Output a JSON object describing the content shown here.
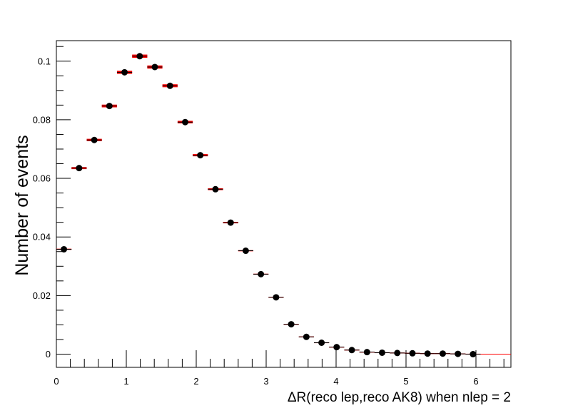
{
  "chart_data": {
    "type": "scatter",
    "title": "",
    "xlabel": "ΔR(reco lep,reco AK8) when nlep = 2",
    "ylabel": "Number of events",
    "xlim": [
      0,
      6.5
    ],
    "ylim": [
      -0.0045,
      0.107
    ],
    "x_ticks": [
      "0",
      "1",
      "2",
      "3",
      "4",
      "5",
      "6"
    ],
    "y_ticks": [
      "0",
      "0.02",
      "0.04",
      "0.06",
      "0.08",
      "0.1"
    ],
    "bin_width": 0.2167,
    "grid": false,
    "legend": "none",
    "colors": {
      "band": "#ff0000",
      "marker": "#000000"
    },
    "series": [
      {
        "x": [
          0.108,
          0.325,
          0.542,
          0.758,
          0.975,
          1.192,
          1.408,
          1.625,
          1.842,
          2.058,
          2.275,
          2.492,
          2.708,
          2.925,
          3.142,
          3.358,
          3.575,
          3.792,
          4.008,
          4.225,
          4.442,
          4.658,
          4.875,
          5.092,
          5.308,
          5.525,
          5.742,
          5.958
        ],
        "y": [
          0.0358,
          0.0635,
          0.0731,
          0.0847,
          0.0962,
          0.1017,
          0.098,
          0.0916,
          0.0792,
          0.0679,
          0.0563,
          0.0449,
          0.0353,
          0.0273,
          0.0194,
          0.0102,
          0.0059,
          0.0039,
          0.0024,
          0.0014,
          0.0007,
          0.0005,
          0.0004,
          0.0003,
          0.0002,
          0.0002,
          0.0001,
          0.0
        ]
      }
    ]
  }
}
